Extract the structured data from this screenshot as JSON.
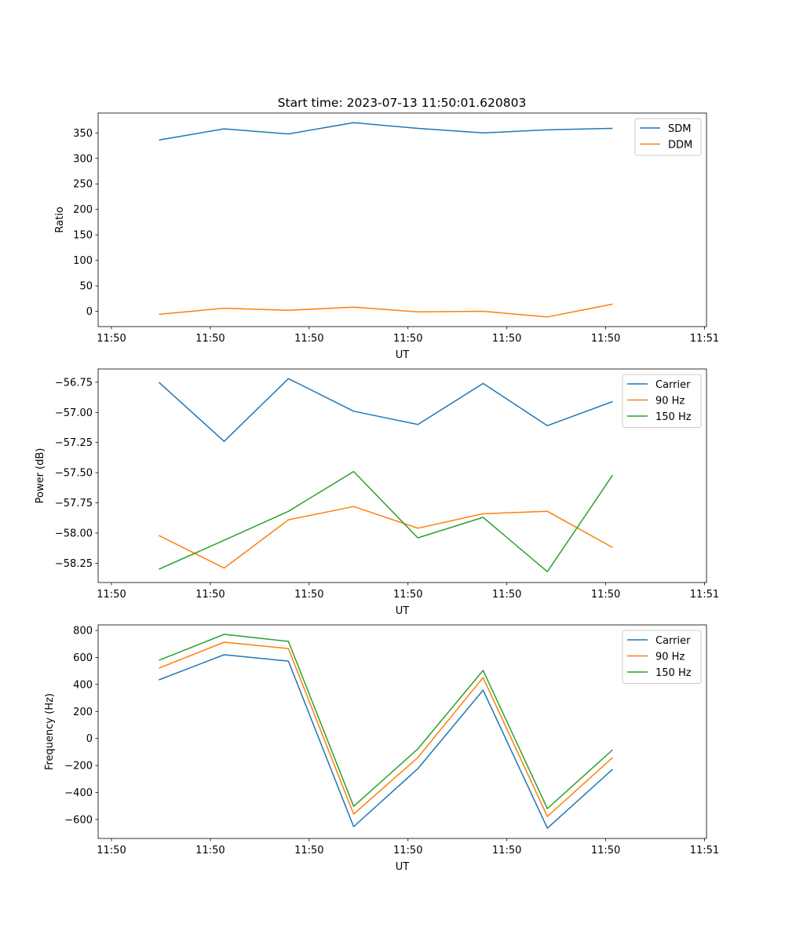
{
  "figure_title": "Start time: 2023-07-13 11:50:01.620803",
  "chart_data": [
    {
      "type": "line",
      "title": "",
      "xlabel": "UT",
      "ylabel": "Ratio",
      "x": [
        4.8,
        11.4,
        17.9,
        24.5,
        31.0,
        37.6,
        44.1,
        50.7
      ],
      "xlim": [
        -1.35,
        60.2
      ],
      "xticks": [
        0,
        10,
        20,
        30,
        40,
        50,
        60
      ],
      "xtick_labels": [
        "11:50",
        "11:50",
        "11:50",
        "11:50",
        "11:50",
        "11:50",
        "11:51"
      ],
      "ylim": [
        -30,
        389
      ],
      "yticks": [
        0,
        50,
        100,
        150,
        200,
        250,
        300,
        350
      ],
      "ytick_labels": [
        "0",
        "50",
        "100",
        "150",
        "200",
        "250",
        "300",
        "350"
      ],
      "legend_position": "upper-right",
      "series": [
        {
          "name": "SDM",
          "color": "#1f77b4",
          "values": [
            336,
            358,
            348,
            370,
            359,
            350,
            356,
            359
          ]
        },
        {
          "name": "DDM",
          "color": "#ff7f0e",
          "values": [
            -6,
            6,
            2,
            8,
            -1,
            0,
            -11,
            14
          ]
        }
      ]
    },
    {
      "type": "line",
      "title": "",
      "xlabel": "UT",
      "ylabel": "Power (dB)",
      "x": [
        4.8,
        11.4,
        17.9,
        24.5,
        31.0,
        37.6,
        44.1,
        50.7
      ],
      "xlim": [
        -1.35,
        60.2
      ],
      "xticks": [
        0,
        10,
        20,
        30,
        40,
        50,
        60
      ],
      "xtick_labels": [
        "11:50",
        "11:50",
        "11:50",
        "11:50",
        "11:50",
        "11:50",
        "11:51"
      ],
      "ylim": [
        -58.41,
        -56.64
      ],
      "yticks": [
        -58.25,
        -58.0,
        -57.75,
        -57.5,
        -57.25,
        -57.0,
        -56.75
      ],
      "ytick_labels": [
        "−58.25",
        "−58.00",
        "−57.75",
        "−57.50",
        "−57.25",
        "−57.00",
        "−56.75"
      ],
      "legend_position": "upper-right",
      "series": [
        {
          "name": "Carrier",
          "color": "#1f77b4",
          "values": [
            -56.75,
            -57.24,
            -56.72,
            -56.99,
            -57.1,
            -56.76,
            -57.11,
            -56.91
          ]
        },
        {
          "name": "90 Hz",
          "color": "#ff7f0e",
          "values": [
            -58.02,
            -58.29,
            -57.89,
            -57.78,
            -57.96,
            -57.84,
            -57.82,
            -58.12
          ]
        },
        {
          "name": "150 Hz",
          "color": "#2ca02c",
          "values": [
            -58.3,
            -58.06,
            -57.82,
            -57.49,
            -58.04,
            -57.87,
            -58.32,
            -57.52
          ]
        }
      ]
    },
    {
      "type": "line",
      "title": "",
      "xlabel": "UT",
      "ylabel": "Frequency (Hz)",
      "x": [
        4.8,
        11.4,
        17.9,
        24.5,
        31.0,
        37.6,
        44.1,
        50.7
      ],
      "xlim": [
        -1.35,
        60.2
      ],
      "xticks": [
        0,
        10,
        20,
        30,
        40,
        50,
        60
      ],
      "xtick_labels": [
        "11:50",
        "11:50",
        "11:50",
        "11:50",
        "11:50",
        "11:50",
        "11:51"
      ],
      "ylim": [
        -740,
        841
      ],
      "yticks": [
        -600,
        -400,
        -200,
        0,
        200,
        400,
        600,
        800
      ],
      "ytick_labels": [
        "−600",
        "−400",
        "−200",
        "0",
        "200",
        "400",
        "600",
        "800"
      ],
      "legend_position": "upper-right",
      "series": [
        {
          "name": "Carrier",
          "color": "#1f77b4",
          "values": [
            434,
            620,
            573,
            -653,
            -223,
            358,
            -664,
            -228
          ]
        },
        {
          "name": "90 Hz",
          "color": "#ff7f0e",
          "values": [
            521,
            713,
            666,
            -560,
            -141,
            451,
            -577,
            -141
          ]
        },
        {
          "name": "150 Hz",
          "color": "#2ca02c",
          "values": [
            579,
            771,
            719,
            -502,
            -77,
            504,
            -519,
            -83
          ]
        }
      ]
    }
  ]
}
